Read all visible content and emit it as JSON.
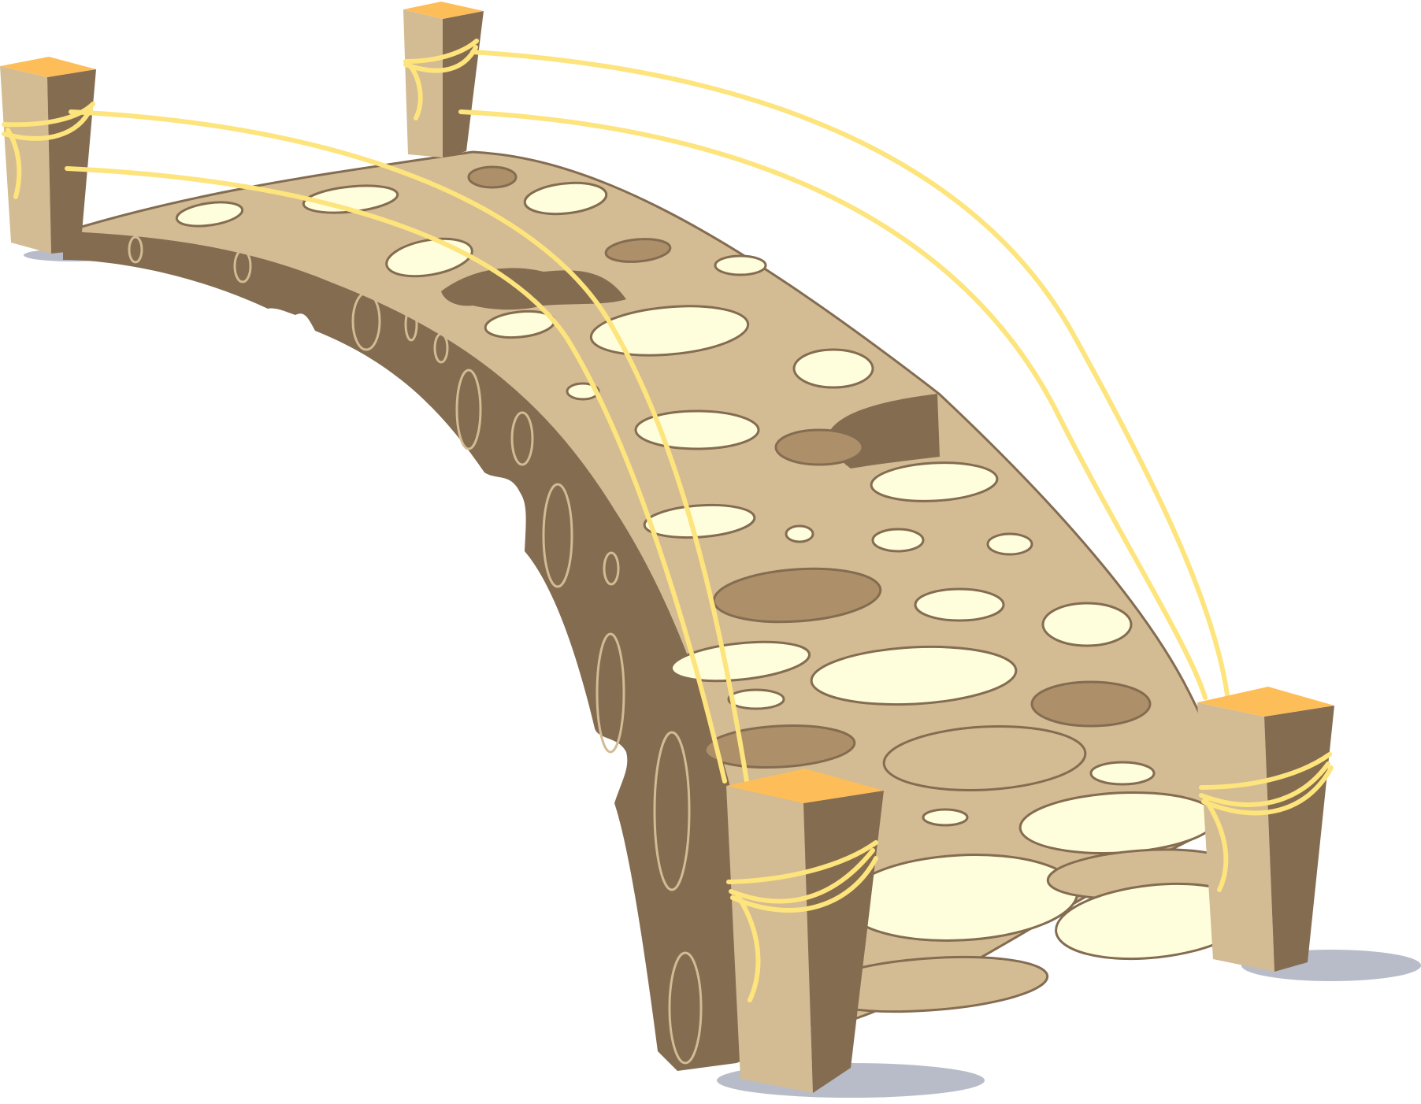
{
  "scene": {
    "subject": "stone-arch-bridge",
    "colors": {
      "background": "#ffffff",
      "shadow": "#b8bcc8",
      "deck": "#d3bb94",
      "side": "#846c51",
      "outline": "#846c51",
      "stone_light": "#fefedc",
      "stone_dark": "#ad9069",
      "post_front": "#d3bb94",
      "post_side": "#846c51",
      "post_top": "#fdbe5a",
      "rope": "#fde47c"
    }
  }
}
